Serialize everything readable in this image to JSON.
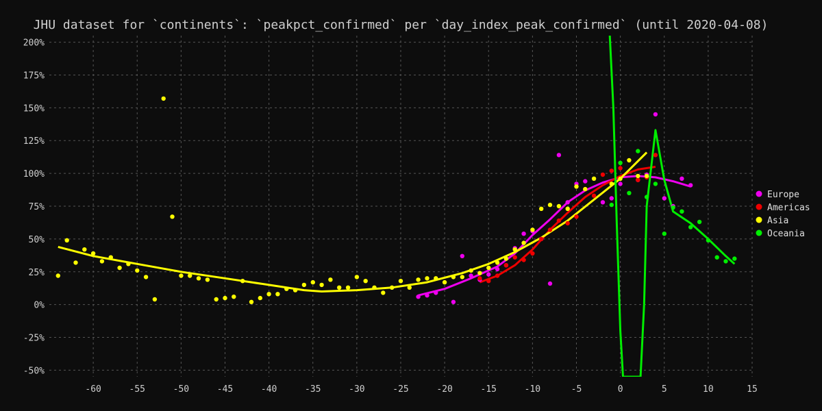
{
  "chart_data": {
    "type": "scatter",
    "title": "JHU dataset for `continents`: `peakpct_confirmed` per `day_index_peak_confirmed` (until 2020-04-08)",
    "xlabel": "",
    "ylabel": "",
    "xlim": [
      -65,
      15
    ],
    "ylim": [
      -55,
      205
    ],
    "x_ticks": [
      -60,
      -55,
      -50,
      -45,
      -40,
      -35,
      -30,
      -25,
      -20,
      -15,
      -10,
      -5,
      0,
      5,
      10,
      15
    ],
    "y_ticks": [
      -50,
      -25,
      0,
      25,
      50,
      75,
      100,
      125,
      150,
      175,
      200
    ],
    "y_tick_format": "percent",
    "grid": true,
    "background": "#0d0d0d",
    "legend_position": "right",
    "series": [
      {
        "name": "Europe",
        "color": "#ee00ee",
        "points": [
          [
            -23,
            6
          ],
          [
            -22,
            7
          ],
          [
            -21,
            9
          ],
          [
            -19,
            2
          ],
          [
            -18,
            37
          ],
          [
            -17,
            22
          ],
          [
            -16,
            19
          ],
          [
            -15,
            23
          ],
          [
            -14,
            27
          ],
          [
            -13,
            30
          ],
          [
            -12,
            43
          ],
          [
            -11,
            54
          ],
          [
            -10,
            56
          ],
          [
            -9,
            50
          ],
          [
            -8,
            16
          ],
          [
            -7,
            114
          ],
          [
            -6,
            78
          ],
          [
            -5,
            92
          ],
          [
            -4,
            94
          ],
          [
            -2,
            78
          ],
          [
            -1,
            81
          ],
          [
            0,
            92
          ],
          [
            2,
            95
          ],
          [
            3,
            99
          ],
          [
            4,
            145
          ],
          [
            5,
            81
          ],
          [
            6,
            75
          ],
          [
            7,
            96
          ],
          [
            8,
            91
          ]
        ],
        "trend": [
          [
            -23,
            7
          ],
          [
            -20,
            12
          ],
          [
            -17,
            20
          ],
          [
            -14,
            29
          ],
          [
            -12,
            39
          ],
          [
            -10,
            53
          ],
          [
            -8,
            65
          ],
          [
            -6,
            78
          ],
          [
            -4,
            87
          ],
          [
            -2,
            93
          ],
          [
            0,
            97
          ],
          [
            2,
            98
          ],
          [
            4,
            97
          ],
          [
            6,
            94
          ],
          [
            8,
            90
          ]
        ]
      },
      {
        "name": "Americas",
        "color": "#ee0000",
        "points": [
          [
            -16,
            20
          ],
          [
            -15,
            18
          ],
          [
            -14,
            22
          ],
          [
            -13,
            30
          ],
          [
            -12,
            36
          ],
          [
            -11,
            34
          ],
          [
            -10,
            39
          ],
          [
            -9,
            50
          ],
          [
            -8,
            57
          ],
          [
            -7,
            64
          ],
          [
            -6,
            62
          ],
          [
            -5,
            67
          ],
          [
            -4,
            88
          ],
          [
            -3,
            83
          ],
          [
            -2,
            99
          ],
          [
            -1,
            102
          ],
          [
            0,
            104
          ],
          [
            2,
            95
          ],
          [
            3,
            97
          ],
          [
            4,
            114
          ]
        ],
        "trend": [
          [
            -16,
            17
          ],
          [
            -14,
            22
          ],
          [
            -12,
            30
          ],
          [
            -10,
            42
          ],
          [
            -8,
            57
          ],
          [
            -6,
            70
          ],
          [
            -4,
            82
          ],
          [
            -2,
            91
          ],
          [
            0,
            98
          ],
          [
            2,
            103
          ],
          [
            4,
            105
          ]
        ]
      },
      {
        "name": "Asia",
        "color": "#ffff00",
        "points": [
          [
            -64,
            22
          ],
          [
            -63,
            49
          ],
          [
            -62,
            32
          ],
          [
            -61,
            42
          ],
          [
            -60,
            39
          ],
          [
            -59,
            33
          ],
          [
            -58,
            36
          ],
          [
            -57,
            28
          ],
          [
            -56,
            31
          ],
          [
            -55,
            26
          ],
          [
            -54,
            21
          ],
          [
            -53,
            4
          ],
          [
            -52,
            157
          ],
          [
            -51,
            67
          ],
          [
            -50,
            22
          ],
          [
            -49,
            22
          ],
          [
            -48,
            20
          ],
          [
            -47,
            19
          ],
          [
            -46,
            4
          ],
          [
            -45,
            5
          ],
          [
            -44,
            6
          ],
          [
            -43,
            18
          ],
          [
            -42,
            2
          ],
          [
            -41,
            5
          ],
          [
            -40,
            8
          ],
          [
            -39,
            8
          ],
          [
            -38,
            12
          ],
          [
            -37,
            11
          ],
          [
            -36,
            15
          ],
          [
            -35,
            17
          ],
          [
            -34,
            15
          ],
          [
            -33,
            19
          ],
          [
            -32,
            13
          ],
          [
            -31,
            13
          ],
          [
            -30,
            21
          ],
          [
            -29,
            18
          ],
          [
            -28,
            13
          ],
          [
            -27,
            9
          ],
          [
            -26,
            13
          ],
          [
            -25,
            18
          ],
          [
            -24,
            13
          ],
          [
            -23,
            19
          ],
          [
            -22,
            20
          ],
          [
            -21,
            20
          ],
          [
            -20,
            17
          ],
          [
            -19,
            21
          ],
          [
            -18,
            21
          ],
          [
            -17,
            26
          ],
          [
            -16,
            24
          ],
          [
            -15,
            28
          ],
          [
            -14,
            32
          ],
          [
            -13,
            35
          ],
          [
            -12,
            42
          ],
          [
            -11,
            47
          ],
          [
            -10,
            57
          ],
          [
            -9,
            73
          ],
          [
            -8,
            76
          ],
          [
            -7,
            75
          ],
          [
            -6,
            73
          ],
          [
            -5,
            90
          ],
          [
            -4,
            88
          ],
          [
            -3,
            96
          ],
          [
            -1,
            92
          ],
          [
            0,
            96
          ],
          [
            1,
            110
          ],
          [
            2,
            98
          ],
          [
            3,
            98
          ]
        ],
        "trend": [
          [
            -64,
            44
          ],
          [
            -60,
            37
          ],
          [
            -55,
            31
          ],
          [
            -50,
            25
          ],
          [
            -45,
            20
          ],
          [
            -40,
            15
          ],
          [
            -36,
            11
          ],
          [
            -34,
            10
          ],
          [
            -30,
            11
          ],
          [
            -26,
            13
          ],
          [
            -22,
            17
          ],
          [
            -18,
            24
          ],
          [
            -15,
            31
          ],
          [
            -12,
            40
          ],
          [
            -9,
            51
          ],
          [
            -6,
            64
          ],
          [
            -3,
            80
          ],
          [
            0,
            96
          ],
          [
            3,
            116
          ]
        ]
      },
      {
        "name": "Oceania",
        "color": "#00ee00",
        "points": [
          [
            -1,
            76
          ],
          [
            0,
            108
          ],
          [
            1,
            85
          ],
          [
            2,
            117
          ],
          [
            3,
            82
          ],
          [
            4,
            92
          ],
          [
            5,
            54
          ],
          [
            6,
            74
          ],
          [
            7,
            71
          ],
          [
            8,
            59
          ],
          [
            9,
            63
          ],
          [
            10,
            49
          ],
          [
            11,
            36
          ],
          [
            12,
            33
          ],
          [
            13,
            35
          ]
        ],
        "trend": [
          [
            -1.2,
            205
          ],
          [
            -0.8,
            150
          ],
          [
            -0.4,
            60
          ],
          [
            0,
            -20
          ],
          [
            0.3,
            -55
          ],
          [
            2.3,
            -55
          ],
          [
            2.7,
            0
          ],
          [
            3,
            75
          ],
          [
            4,
            133
          ],
          [
            5,
            95
          ],
          [
            6,
            71
          ],
          [
            8,
            62
          ],
          [
            10,
            50
          ],
          [
            12,
            37
          ],
          [
            13,
            31
          ]
        ]
      }
    ]
  }
}
